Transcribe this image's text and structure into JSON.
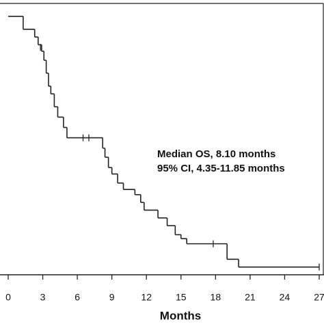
{
  "chart_data": {
    "type": "km",
    "x_label": "Months",
    "annotations": [
      "Median OS, 8.10 months",
      "95% CI, 4.35-11.85 months"
    ],
    "color": "#222222",
    "x": [
      0,
      1.3,
      2.3,
      2.6,
      2.9,
      3.1,
      3.3,
      3.5,
      3.7,
      4.0,
      4.3,
      4.8,
      5.1,
      8.2,
      8.4,
      8.7,
      9.0,
      9.5,
      10.0,
      11.0,
      11.5,
      11.8,
      13.0,
      13.8,
      14.5,
      15.0,
      15.5,
      19.0,
      20.0
    ],
    "values": [
      1.0,
      0.95,
      0.92,
      0.89,
      0.865,
      0.83,
      0.78,
      0.73,
      0.7,
      0.65,
      0.61,
      0.57,
      0.53,
      0.49,
      0.455,
      0.415,
      0.39,
      0.355,
      0.33,
      0.31,
      0.28,
      0.25,
      0.22,
      0.19,
      0.155,
      0.14,
      0.12,
      0.06,
      0.03
    ],
    "censor_x": [
      2.8,
      6.5,
      7.0,
      17.8,
      27
    ],
    "censor_values": [
      0.88,
      0.53,
      0.53,
      0.12,
      0.03
    ],
    "xlim": [
      0,
      27
    ],
    "ylim": [
      0,
      1.05
    ],
    "xticks": [
      0,
      3,
      6,
      9,
      12,
      15,
      18,
      21,
      24,
      27
    ]
  }
}
